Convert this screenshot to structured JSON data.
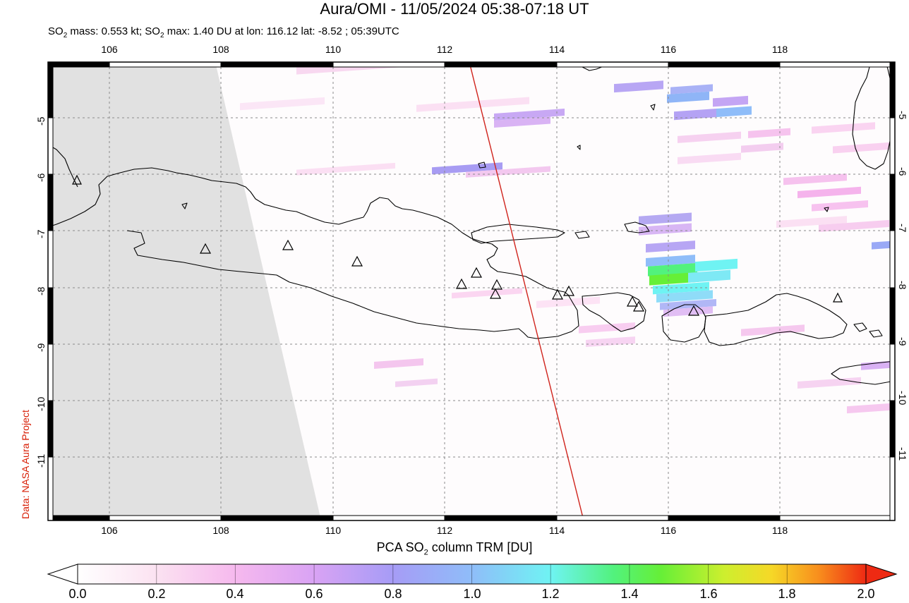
{
  "title": "Aura/OMI - 11/05/2024 05:38-07:18 UT",
  "subtitle": {
    "prefix": "SO",
    "sub1": "2",
    "mid": " mass: 0.553 kt; SO",
    "sub2": "2",
    "suffix": " max: 1.40 DU at lon: 116.12 lat: -8.52 ; 05:39UTC"
  },
  "credit": "Data: NASA Aura Project",
  "map": {
    "lon_range": [
      105.0,
      120.0
    ],
    "lat_range": [
      -12.0,
      -4.0
    ],
    "lon_ticks": [
      "106",
      "108",
      "110",
      "112",
      "114",
      "116",
      "118"
    ],
    "lat_ticks": [
      "-5",
      "-6",
      "-7",
      "-8",
      "-9",
      "-10",
      "-11"
    ],
    "so2_max": {
      "value_du": 1.4,
      "lon": 116.12,
      "lat": -8.52
    },
    "volcano_symbol": "triangle-outline-icon",
    "no_data_color": "#e1e1e1",
    "orbit_track_color": "#d0231c"
  },
  "colorbar": {
    "label_prefix": "PCA SO",
    "label_sub": "2",
    "label_suffix": " column TRM [DU]",
    "ticks": [
      "0.0",
      "0.2",
      "0.4",
      "0.6",
      "0.8",
      "1.0",
      "1.2",
      "1.4",
      "1.6",
      "1.8",
      "2.0"
    ],
    "colors": [
      "#ffffff",
      "#fbe2f1",
      "#f6b9ee",
      "#d9a3f4",
      "#a69cf6",
      "#8fbdf9",
      "#6ff3f3",
      "#52f27d",
      "#66ef37",
      "#cdef2e",
      "#f6d827",
      "#f88e1d",
      "#ee2a13"
    ]
  }
}
